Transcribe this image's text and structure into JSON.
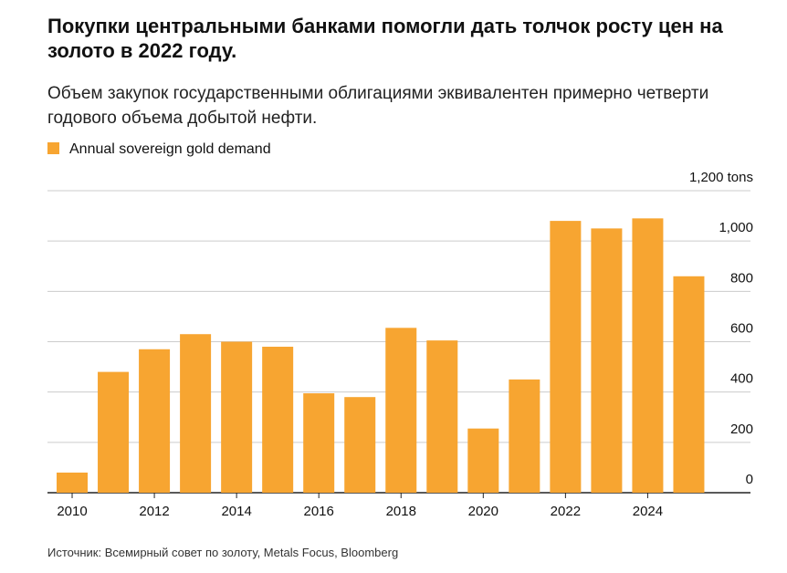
{
  "chart_data": {
    "type": "bar",
    "title": "Покупки центральными банками помогли дать толчок росту цен на золото в 2022 году.",
    "subtitle": "Объем закупок государственными облигациями эквивалентен примерно четверти годового объема добытой нефти.",
    "source": "Источник: Всемирный совет по золоту, Metals Focus, Bloomberg",
    "x": [
      2010,
      2011,
      2012,
      2013,
      2014,
      2015,
      2016,
      2017,
      2018,
      2019,
      2020,
      2021,
      2022,
      2023,
      2024,
      2025
    ],
    "xlim": [
      2009.4,
      2026.5
    ],
    "xticks": [
      2010,
      2012,
      2014,
      2016,
      2018,
      2020,
      2022,
      2024
    ],
    "series": [
      {
        "name": "Annual sovereign gold demand",
        "color": "#f7a531",
        "values": [
          80,
          480,
          570,
          630,
          600,
          580,
          395,
          380,
          655,
          605,
          255,
          450,
          1080,
          1050,
          1090,
          860
        ]
      }
    ],
    "ylim": [
      0,
      1200
    ],
    "yticks": [
      0,
      200,
      400,
      600,
      800,
      {
        "value": 1000,
        "label": "1,000"
      },
      {
        "value": 1200,
        "label": "1,200 tons"
      }
    ],
    "grid": true
  }
}
